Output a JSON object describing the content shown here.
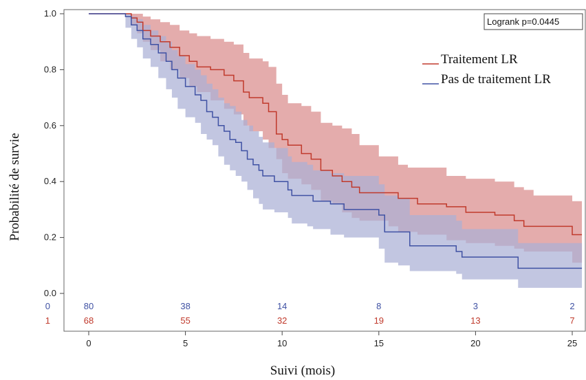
{
  "chart_data": {
    "type": "line",
    "title": "",
    "xlabel": "Suivi (mois)",
    "ylabel": "Probabilité de survie",
    "xlim": [
      -2,
      25.5
    ],
    "ylim": [
      0,
      1.0
    ],
    "x_ticks": [
      "0",
      "5",
      "10",
      "15",
      "20",
      "25"
    ],
    "y_ticks": [
      "0.0",
      "0.2",
      "0.4",
      "0.6",
      "0.8",
      "1.0"
    ],
    "grid": false,
    "legend_position": "top-right",
    "annotation": "Logrank p=0.0445",
    "colors": {
      "treatment": "#c0392b",
      "no_treatment": "#3f51a3",
      "treatment_band": "#d98c8c",
      "no_treatment_band": "#aab0d6"
    },
    "series": [
      {
        "name": "Traitement  LR",
        "color": "#c0392b",
        "band_color": "#d98c8c",
        "steps": [
          [
            0,
            1.0
          ],
          [
            2.2,
            0.985
          ],
          [
            2.5,
            0.97
          ],
          [
            2.8,
            0.94
          ],
          [
            3.2,
            0.92
          ],
          [
            3.7,
            0.9
          ],
          [
            4.2,
            0.88
          ],
          [
            4.7,
            0.85
          ],
          [
            5.2,
            0.83
          ],
          [
            5.6,
            0.81
          ],
          [
            6.3,
            0.8
          ],
          [
            7.0,
            0.78
          ],
          [
            7.5,
            0.76
          ],
          [
            8.0,
            0.72
          ],
          [
            8.3,
            0.7
          ],
          [
            9.0,
            0.68
          ],
          [
            9.3,
            0.65
          ],
          [
            9.7,
            0.57
          ],
          [
            10.0,
            0.55
          ],
          [
            10.3,
            0.53
          ],
          [
            11.0,
            0.5
          ],
          [
            11.5,
            0.48
          ],
          [
            12.0,
            0.44
          ],
          [
            12.6,
            0.42
          ],
          [
            13.1,
            0.4
          ],
          [
            13.6,
            0.38
          ],
          [
            14.0,
            0.36
          ],
          [
            16.0,
            0.34
          ],
          [
            17.0,
            0.32
          ],
          [
            18.5,
            0.31
          ],
          [
            19.5,
            0.29
          ],
          [
            21.0,
            0.28
          ],
          [
            22.0,
            0.26
          ],
          [
            22.5,
            0.24
          ],
          [
            25.0,
            0.21
          ],
          [
            25.5,
            0.21
          ]
        ],
        "upper": [
          [
            0,
            1.0
          ],
          [
            2.2,
            1.0
          ],
          [
            2.8,
            0.99
          ],
          [
            3.2,
            0.98
          ],
          [
            3.7,
            0.97
          ],
          [
            4.2,
            0.96
          ],
          [
            4.7,
            0.94
          ],
          [
            5.2,
            0.93
          ],
          [
            5.6,
            0.92
          ],
          [
            6.3,
            0.91
          ],
          [
            7.0,
            0.9
          ],
          [
            7.5,
            0.89
          ],
          [
            8.0,
            0.86
          ],
          [
            8.3,
            0.84
          ],
          [
            9.0,
            0.83
          ],
          [
            9.3,
            0.81
          ],
          [
            9.7,
            0.75
          ],
          [
            10.0,
            0.71
          ],
          [
            10.3,
            0.68
          ],
          [
            11.0,
            0.67
          ],
          [
            11.5,
            0.65
          ],
          [
            12.0,
            0.61
          ],
          [
            12.6,
            0.6
          ],
          [
            13.1,
            0.59
          ],
          [
            13.6,
            0.57
          ],
          [
            14.0,
            0.53
          ],
          [
            15.0,
            0.49
          ],
          [
            16.0,
            0.46
          ],
          [
            16.5,
            0.45
          ],
          [
            18.5,
            0.42
          ],
          [
            19.5,
            0.41
          ],
          [
            21.0,
            0.4
          ],
          [
            22.0,
            0.38
          ],
          [
            22.5,
            0.37
          ],
          [
            23.0,
            0.35
          ],
          [
            25.0,
            0.33
          ],
          [
            25.5,
            0.33
          ]
        ],
        "lower": [
          [
            0,
            1.0
          ],
          [
            2.2,
            0.96
          ],
          [
            2.5,
            0.93
          ],
          [
            2.8,
            0.9
          ],
          [
            3.2,
            0.87
          ],
          [
            3.7,
            0.83
          ],
          [
            4.2,
            0.8
          ],
          [
            4.7,
            0.77
          ],
          [
            5.2,
            0.74
          ],
          [
            5.6,
            0.72
          ],
          [
            6.3,
            0.69
          ],
          [
            7.0,
            0.66
          ],
          [
            7.5,
            0.64
          ],
          [
            8.0,
            0.6
          ],
          [
            8.3,
            0.58
          ],
          [
            9.0,
            0.55
          ],
          [
            9.3,
            0.52
          ],
          [
            9.7,
            0.48
          ],
          [
            10.0,
            0.43
          ],
          [
            10.3,
            0.41
          ],
          [
            11.0,
            0.39
          ],
          [
            11.5,
            0.37
          ],
          [
            12.0,
            0.33
          ],
          [
            12.6,
            0.32
          ],
          [
            13.1,
            0.29
          ],
          [
            13.6,
            0.27
          ],
          [
            14.0,
            0.26
          ],
          [
            15.5,
            0.24
          ],
          [
            16.0,
            0.22
          ],
          [
            17.0,
            0.21
          ],
          [
            18.5,
            0.19
          ],
          [
            19.5,
            0.18
          ],
          [
            21.0,
            0.17
          ],
          [
            22.0,
            0.16
          ],
          [
            22.5,
            0.15
          ],
          [
            25.0,
            0.11
          ],
          [
            25.5,
            0.11
          ]
        ]
      },
      {
        "name": "Pas de traitement  LR",
        "color": "#3f51a3",
        "band_color": "#aab0d6",
        "steps": [
          [
            0,
            1.0
          ],
          [
            1.9,
            0.99
          ],
          [
            2.2,
            0.96
          ],
          [
            2.5,
            0.94
          ],
          [
            2.8,
            0.91
          ],
          [
            3.2,
            0.89
          ],
          [
            3.6,
            0.86
          ],
          [
            4.0,
            0.83
          ],
          [
            4.3,
            0.8
          ],
          [
            4.6,
            0.77
          ],
          [
            5.0,
            0.74
          ],
          [
            5.5,
            0.71
          ],
          [
            5.8,
            0.69
          ],
          [
            6.1,
            0.65
          ],
          [
            6.4,
            0.63
          ],
          [
            6.7,
            0.6
          ],
          [
            7.0,
            0.58
          ],
          [
            7.3,
            0.55
          ],
          [
            7.6,
            0.54
          ],
          [
            7.9,
            0.51
          ],
          [
            8.2,
            0.48
          ],
          [
            8.5,
            0.46
          ],
          [
            8.8,
            0.44
          ],
          [
            9.0,
            0.42
          ],
          [
            9.6,
            0.4
          ],
          [
            10.3,
            0.37
          ],
          [
            10.5,
            0.35
          ],
          [
            11.0,
            0.35
          ],
          [
            11.3,
            0.35
          ],
          [
            11.6,
            0.33
          ],
          [
            12.5,
            0.32
          ],
          [
            13.2,
            0.3
          ],
          [
            15.0,
            0.28
          ],
          [
            15.3,
            0.22
          ],
          [
            16.0,
            0.22
          ],
          [
            16.6,
            0.17
          ],
          [
            19.0,
            0.15
          ],
          [
            19.3,
            0.13
          ],
          [
            22.2,
            0.09
          ],
          [
            25.5,
            0.09
          ]
        ],
        "upper": [
          [
            0,
            1.0
          ],
          [
            1.9,
            1.0
          ],
          [
            2.2,
            0.99
          ],
          [
            2.5,
            0.98
          ],
          [
            2.8,
            0.96
          ],
          [
            3.2,
            0.94
          ],
          [
            3.6,
            0.92
          ],
          [
            4.0,
            0.9
          ],
          [
            4.3,
            0.87
          ],
          [
            4.6,
            0.85
          ],
          [
            5.0,
            0.82
          ],
          [
            5.5,
            0.8
          ],
          [
            5.8,
            0.78
          ],
          [
            6.1,
            0.75
          ],
          [
            6.4,
            0.73
          ],
          [
            6.7,
            0.7
          ],
          [
            7.0,
            0.68
          ],
          [
            7.3,
            0.67
          ],
          [
            7.6,
            0.65
          ],
          [
            7.9,
            0.62
          ],
          [
            8.2,
            0.6
          ],
          [
            8.5,
            0.58
          ],
          [
            8.8,
            0.56
          ],
          [
            9.0,
            0.54
          ],
          [
            9.6,
            0.52
          ],
          [
            10.3,
            0.49
          ],
          [
            10.5,
            0.47
          ],
          [
            11.3,
            0.46
          ],
          [
            11.6,
            0.44
          ],
          [
            12.5,
            0.43
          ],
          [
            13.2,
            0.42
          ],
          [
            15.0,
            0.39
          ],
          [
            15.3,
            0.35
          ],
          [
            16.0,
            0.34
          ],
          [
            16.6,
            0.28
          ],
          [
            19.0,
            0.26
          ],
          [
            19.3,
            0.23
          ],
          [
            22.2,
            0.18
          ],
          [
            25.5,
            0.18
          ]
        ],
        "lower": [
          [
            0,
            1.0
          ],
          [
            1.9,
            0.95
          ],
          [
            2.2,
            0.91
          ],
          [
            2.5,
            0.88
          ],
          [
            2.8,
            0.84
          ],
          [
            3.2,
            0.81
          ],
          [
            3.6,
            0.77
          ],
          [
            4.0,
            0.73
          ],
          [
            4.3,
            0.7
          ],
          [
            4.6,
            0.66
          ],
          [
            5.0,
            0.63
          ],
          [
            5.5,
            0.61
          ],
          [
            5.8,
            0.57
          ],
          [
            6.1,
            0.55
          ],
          [
            6.4,
            0.53
          ],
          [
            6.7,
            0.49
          ],
          [
            7.0,
            0.46
          ],
          [
            7.3,
            0.44
          ],
          [
            7.6,
            0.42
          ],
          [
            7.9,
            0.4
          ],
          [
            8.2,
            0.37
          ],
          [
            8.5,
            0.34
          ],
          [
            8.8,
            0.32
          ],
          [
            9.0,
            0.3
          ],
          [
            9.6,
            0.29
          ],
          [
            10.3,
            0.27
          ],
          [
            10.5,
            0.25
          ],
          [
            11.3,
            0.24
          ],
          [
            11.6,
            0.23
          ],
          [
            12.5,
            0.21
          ],
          [
            13.2,
            0.2
          ],
          [
            15.0,
            0.16
          ],
          [
            15.3,
            0.11
          ],
          [
            16.0,
            0.1
          ],
          [
            16.6,
            0.08
          ],
          [
            19.0,
            0.07
          ],
          [
            19.3,
            0.05
          ],
          [
            22.2,
            0.02
          ],
          [
            25.5,
            0.02
          ]
        ]
      }
    ],
    "risk_table": {
      "rows": [
        {
          "group": "0",
          "color": "#3f51a3",
          "x": [
            0,
            5,
            10,
            15,
            20,
            25
          ],
          "counts": [
            "80",
            "38",
            "14",
            "8",
            "3",
            "2"
          ]
        },
        {
          "group": "1",
          "color": "#c0392b",
          "x": [
            0,
            5,
            10,
            15,
            20,
            25
          ],
          "counts": [
            "68",
            "55",
            "32",
            "19",
            "13",
            "7"
          ]
        }
      ]
    }
  }
}
